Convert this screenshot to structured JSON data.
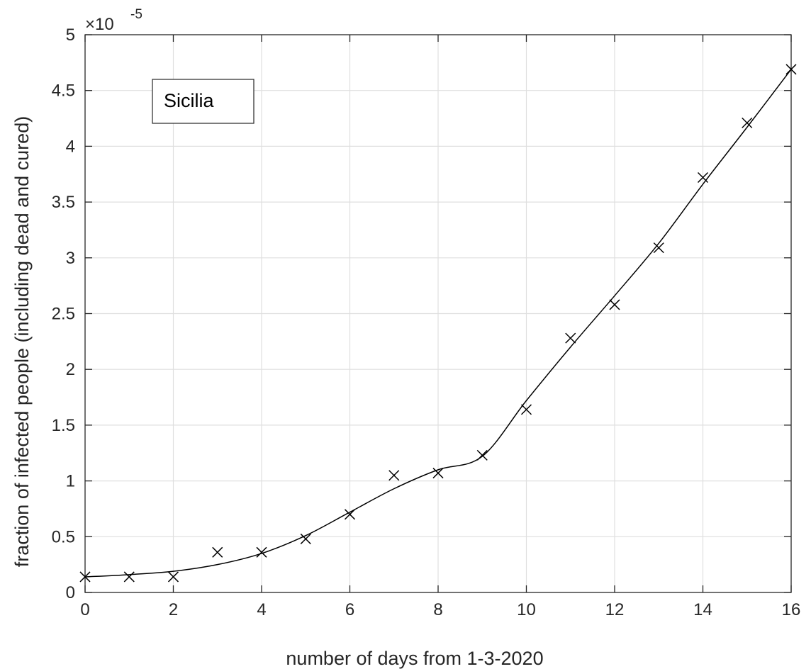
{
  "chart_data": {
    "type": "line",
    "title": "",
    "xlabel": "number of days from 1-3-2020",
    "ylabel": "fraction of infected people (including dead and cured)",
    "y_exponent_label": "×10",
    "y_exponent_power": "-5",
    "y_scale": 1e-05,
    "xlim": [
      0,
      16
    ],
    "ylim": [
      0,
      5
    ],
    "x_ticks": [
      0,
      2,
      4,
      6,
      8,
      10,
      12,
      14,
      16
    ],
    "x_tick_labels": [
      "0",
      "2",
      "4",
      "6",
      "8",
      "10",
      "12",
      "14",
      "16"
    ],
    "y_ticks": [
      0,
      0.5,
      1,
      1.5,
      2,
      2.5,
      3,
      3.5,
      4,
      4.5,
      5
    ],
    "y_tick_labels": [
      "0",
      "0.5",
      "1",
      "1.5",
      "2",
      "2.5",
      "3",
      "3.5",
      "4",
      "4.5",
      "5"
    ],
    "grid": true,
    "legend": {
      "placement": "top-left",
      "entries": [
        "Sicilia"
      ]
    },
    "series": [
      {
        "type": "scatter",
        "marker": "x",
        "color": "#000000",
        "x": [
          0,
          1,
          2,
          3,
          4,
          5,
          6,
          7,
          8,
          9,
          10,
          11,
          12,
          13,
          14,
          15,
          16
        ],
        "values": [
          0.14,
          0.14,
          0.14,
          0.36,
          0.36,
          0.48,
          0.7,
          1.05,
          1.07,
          1.23,
          1.64,
          2.28,
          2.58,
          3.09,
          3.72,
          4.21,
          4.69
        ]
      },
      {
        "type": "line",
        "color": "#000000",
        "x": [
          0,
          1,
          2,
          3,
          4,
          5,
          6,
          7,
          8,
          9,
          10,
          11,
          12,
          13,
          14,
          15,
          16
        ],
        "values": [
          0.14,
          0.16,
          0.19,
          0.25,
          0.35,
          0.51,
          0.72,
          0.93,
          1.1,
          1.22,
          1.72,
          2.2,
          2.66,
          3.13,
          3.66,
          4.17,
          4.69
        ]
      }
    ]
  }
}
